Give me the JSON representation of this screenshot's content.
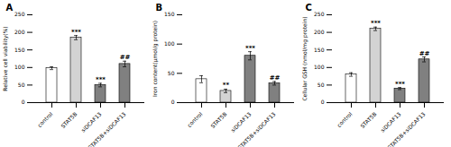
{
  "chart_data": [
    {
      "type": "bar",
      "title": "A",
      "ylabel": "Relative cell viability(%)",
      "categories": [
        "control",
        "STAT5B",
        "siDCAF13",
        "STAT5B+siDCAF13"
      ],
      "values": [
        98,
        185,
        50,
        110
      ],
      "errors": [
        4,
        6,
        5,
        8
      ],
      "colors": [
        "#ffffff",
        "#d3d3d3",
        "#808080",
        "#808080"
      ],
      "annotations": [
        {
          "category": "STAT5B",
          "text": "***"
        },
        {
          "category": "siDCAF13",
          "text": "***"
        },
        {
          "category": "STAT5B+siDCAF13",
          "text": "##"
        }
      ],
      "ylim": [
        0,
        250
      ],
      "yticks": [
        0,
        50,
        100,
        150,
        200,
        250
      ],
      "grid": false
    },
    {
      "type": "bar",
      "title": "B",
      "ylabel": "Iron content(μmol/g protein)",
      "categories": [
        "control",
        "STAT5B",
        "siDCAF13",
        "STAT5B+siDCAF13"
      ],
      "values": [
        40,
        20,
        80,
        33
      ],
      "errors": [
        6,
        3,
        7,
        3
      ],
      "colors": [
        "#ffffff",
        "#d3d3d3",
        "#808080",
        "#808080"
      ],
      "annotations": [
        {
          "category": "STAT5B",
          "text": "**"
        },
        {
          "category": "siDCAF13",
          "text": "***"
        },
        {
          "category": "STAT5B+siDCAF13",
          "text": "##"
        }
      ],
      "ylim": [
        0,
        150
      ],
      "yticks": [
        0,
        50,
        100,
        150
      ],
      "grid": false
    },
    {
      "type": "bar",
      "title": "C",
      "ylabel": "Cellular GSH (nmol/mg protein)",
      "categories": [
        "control",
        "STAT5B",
        "siDCAF13",
        "STAT5B+siDCAF13"
      ],
      "values": [
        80,
        210,
        40,
        123
      ],
      "errors": [
        5,
        5,
        3,
        7
      ],
      "colors": [
        "#ffffff",
        "#d3d3d3",
        "#808080",
        "#808080"
      ],
      "annotations": [
        {
          "category": "STAT5B",
          "text": "***"
        },
        {
          "category": "siDCAF13",
          "text": "***"
        },
        {
          "category": "STAT5B+siDCAF13",
          "text": "##"
        }
      ],
      "ylim": [
        0,
        250
      ],
      "yticks": [
        0,
        50,
        100,
        150,
        200,
        250
      ],
      "grid": false
    }
  ]
}
